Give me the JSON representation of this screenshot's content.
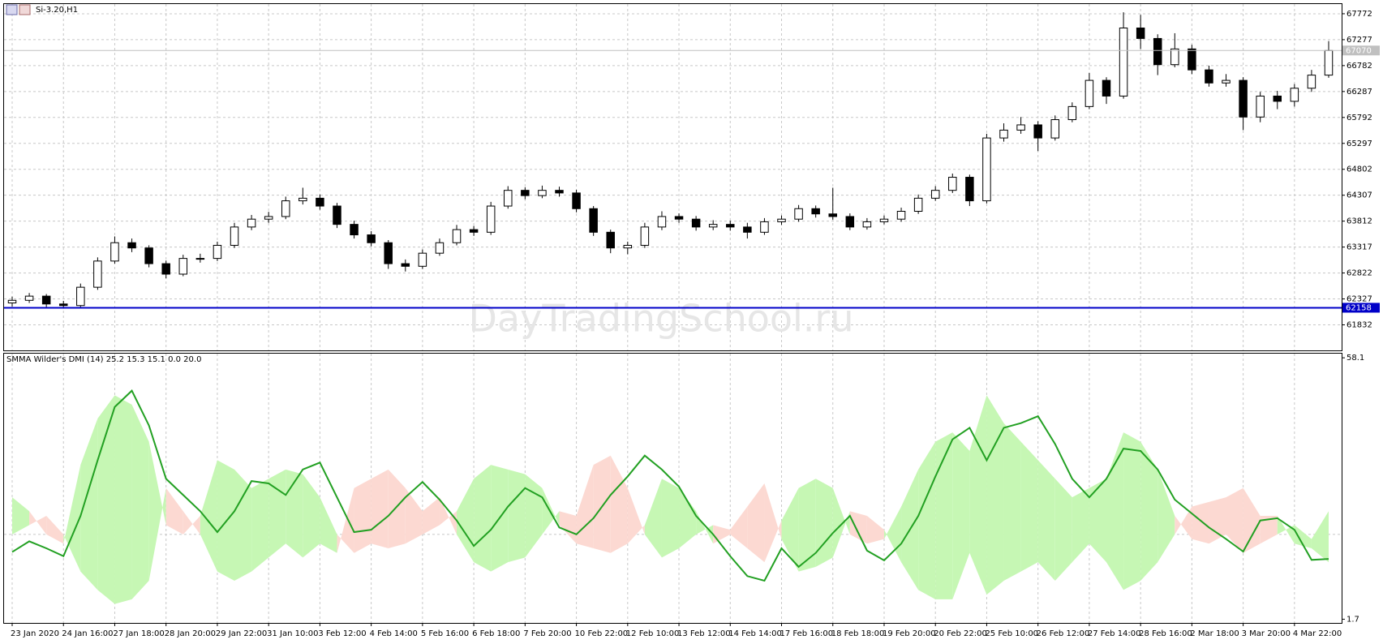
{
  "header": {
    "symbol": "Si-3.20,H1"
  },
  "watermark": "DayTradingSchool.ru",
  "chart_data": [
    {
      "type": "candlestick",
      "categories": [
        "23 Jan 2020",
        null,
        null,
        "24 Jan 16:00",
        null,
        null,
        "27 Jan 18:00",
        null,
        null,
        "28 Jan 20:00",
        null,
        null,
        "29 Jan 22:00",
        null,
        null,
        "31 Jan 10:00",
        null,
        null,
        "3 Feb 12:00",
        null,
        null,
        "4 Feb 14:00",
        null,
        null,
        "5 Feb 16:00",
        null,
        null,
        "6 Feb 18:00",
        null,
        null,
        "7 Feb 20:00",
        null,
        null,
        "10 Feb 22:00",
        null,
        null,
        "12 Feb 10:00",
        null,
        null,
        "13 Feb 12:00",
        null,
        null,
        "14 Feb 14:00",
        null,
        null,
        "17 Feb 16:00",
        null,
        null,
        "18 Feb 18:00",
        null,
        null,
        "19 Feb 20:00",
        null,
        null,
        "20 Feb 22:00",
        null,
        null,
        "25 Feb 10:00",
        null,
        null,
        "26 Feb 12:00",
        null,
        null,
        "27 Feb 14:00",
        null,
        null,
        "28 Feb 16:00",
        null,
        null,
        "2 Mar 18:00",
        null,
        null,
        "3 Mar 20:00",
        null,
        null,
        "4 Mar 22:00",
        null,
        null
      ],
      "open": [
        62250,
        62300,
        62380,
        62230,
        62200,
        62550,
        63050,
        63400,
        63300,
        63000,
        62800,
        63100,
        63100,
        63350,
        63700,
        63850,
        63900,
        64200,
        64250,
        64100,
        63750,
        63550,
        63400,
        63000,
        62950,
        63200,
        63400,
        63650,
        63600,
        64100,
        64400,
        64300,
        64400,
        64350,
        64050,
        63600,
        63300,
        63350,
        63700,
        63900,
        63850,
        63700,
        63750,
        63700,
        63600,
        63800,
        63850,
        64050,
        63950,
        63900,
        63700,
        63800,
        63850,
        64000,
        64250,
        64400,
        64650,
        64200,
        65400,
        65550,
        65650,
        65400,
        65750,
        66000,
        66500,
        66200,
        67500,
        67300,
        66800,
        67100,
        66700,
        66450,
        66500,
        65800,
        66200,
        66100,
        66350,
        66600
      ],
      "high": [
        62370,
        62440,
        62420,
        62290,
        62620,
        63120,
        63520,
        63480,
        63350,
        63060,
        63170,
        63190,
        63420,
        63780,
        63930,
        63990,
        64280,
        64450,
        64320,
        64160,
        63820,
        63620,
        63450,
        63080,
        63270,
        63480,
        63740,
        63720,
        64180,
        64480,
        64460,
        64490,
        64470,
        64410,
        64100,
        63650,
        63420,
        63780,
        64000,
        63960,
        63910,
        63830,
        63820,
        63780,
        63870,
        63920,
        64120,
        64110,
        64450,
        63960,
        63870,
        63920,
        64070,
        64320,
        64480,
        64720,
        64700,
        65480,
        65680,
        65800,
        65720,
        65830,
        66080,
        66640,
        66560,
        67800,
        67750,
        67380,
        67400,
        67180,
        66780,
        66620,
        66560,
        66280,
        66300,
        66430,
        66700,
        67250
      ],
      "low": [
        62180,
        62250,
        62170,
        62140,
        62170,
        62500,
        63000,
        63220,
        62930,
        62720,
        62760,
        63020,
        63050,
        63300,
        63640,
        63780,
        63850,
        64130,
        64030,
        63680,
        63480,
        63330,
        62900,
        62850,
        62900,
        63150,
        63350,
        63530,
        63550,
        64050,
        64230,
        64250,
        64280,
        63980,
        63530,
        63200,
        63180,
        63300,
        63640,
        63780,
        63630,
        63640,
        63630,
        63480,
        63550,
        63740,
        63800,
        63880,
        63840,
        63640,
        63650,
        63750,
        63800,
        63950,
        64200,
        64350,
        64100,
        64150,
        65330,
        65480,
        65150,
        65350,
        65700,
        65950,
        66050,
        66150,
        67100,
        66600,
        66750,
        66620,
        66380,
        66380,
        65550,
        65700,
        65950,
        66000,
        66280,
        66550
      ],
      "close": [
        62300,
        62380,
        62230,
        62200,
        62550,
        63050,
        63400,
        63300,
        63000,
        62800,
        63100,
        63100,
        63350,
        63700,
        63850,
        63900,
        64200,
        64250,
        64100,
        63750,
        63550,
        63400,
        63000,
        62950,
        63200,
        63400,
        63650,
        63600,
        64100,
        64400,
        64300,
        64400,
        64350,
        64050,
        63600,
        63300,
        63350,
        63700,
        63900,
        63850,
        63700,
        63750,
        63700,
        63600,
        63800,
        63850,
        64050,
        63950,
        63900,
        63700,
        63800,
        63850,
        64000,
        64250,
        64400,
        64650,
        64200,
        65400,
        65550,
        65650,
        65400,
        65750,
        66000,
        66500,
        66200,
        67500,
        67300,
        66800,
        67100,
        66700,
        66450,
        66500,
        65800,
        66200,
        66100,
        66350,
        66600,
        67070
      ],
      "up_color": "#ffffff",
      "down_color": "#000000",
      "ylim": [
        61344,
        67957
      ],
      "yticks": [
        61832,
        62327,
        62822,
        63317,
        63812,
        64307,
        64802,
        65297,
        65792,
        66287,
        66782,
        67277,
        67772
      ],
      "grid": true,
      "hlines": [
        {
          "value": 62158,
          "color": "#0000c8"
        },
        {
          "value": 67070,
          "color": "#c0c0c0"
        }
      ]
    },
    {
      "type": "dmi",
      "title": "SMMA Wilder's DMI (14) 25.2 15.3 15.1 0.0 20.0",
      "series": [
        {
          "color": "#22a022",
          "values": [
            16.2,
            18.5,
            17,
            15.3,
            24,
            36,
            47.5,
            51,
            43.5,
            32,
            28.5,
            25,
            20.5,
            25,
            31.5,
            31,
            28.5,
            34,
            35.5,
            28,
            20.5,
            21,
            24,
            28,
            31.3,
            27.5,
            23,
            17.5,
            21,
            26,
            30,
            28,
            21.5,
            20,
            23.5,
            28.5,
            32.5,
            37,
            34,
            30.3,
            24,
            20,
            15.3,
            11,
            10,
            17,
            13,
            16,
            20.3,
            24,
            16.5,
            14.4,
            18,
            24,
            32.5,
            40.5,
            43,
            36,
            43,
            44,
            45.5,
            39.5,
            32,
            28,
            32,
            38.5,
            38,
            34,
            27.5,
            24.5,
            21.5,
            19,
            16.3,
            23,
            23.5,
            21,
            14.5,
            14.7
          ]
        },
        {
          "color": "#c6f7b4",
          "values": [
            28,
            25,
            20,
            18,
            35,
            45,
            50,
            48,
            40,
            22,
            20,
            24,
            36,
            34,
            30,
            32,
            34,
            33,
            28,
            20,
            16,
            18,
            17,
            18,
            20,
            22,
            25,
            32,
            35,
            34,
            33,
            30,
            22,
            18,
            17,
            16,
            18,
            22,
            32,
            30,
            25,
            18,
            20,
            17,
            14,
            23,
            30,
            32,
            30,
            20,
            18,
            19,
            26,
            34,
            40,
            42,
            38,
            50,
            44,
            40,
            36,
            32,
            28,
            30,
            32,
            42,
            40,
            34,
            24,
            19,
            18,
            20,
            16,
            18,
            20,
            22,
            19,
            25
          ]
        },
        {
          "color": "#fcd9d2",
          "values": [
            20,
            22,
            24,
            20,
            12,
            8,
            5,
            6,
            10,
            30,
            25,
            20,
            12,
            10,
            12,
            15,
            18,
            15,
            18,
            16,
            30,
            32,
            34,
            30,
            25,
            28,
            20,
            14,
            12,
            14,
            15,
            20,
            25,
            24,
            35,
            37,
            30,
            20,
            15,
            17,
            20,
            22,
            21,
            26,
            31,
            19,
            12,
            13,
            15,
            25,
            24,
            21,
            14,
            8,
            6,
            6,
            16,
            7,
            10,
            12,
            14,
            10,
            14,
            18,
            14,
            8,
            10,
            14,
            20,
            26,
            27,
            28,
            30,
            24,
            24,
            18,
            17,
            14
          ]
        }
      ],
      "ylim": [
        0.9,
        59.0
      ],
      "yticks": [
        58.1,
        1.7
      ],
      "level": 20
    }
  ]
}
